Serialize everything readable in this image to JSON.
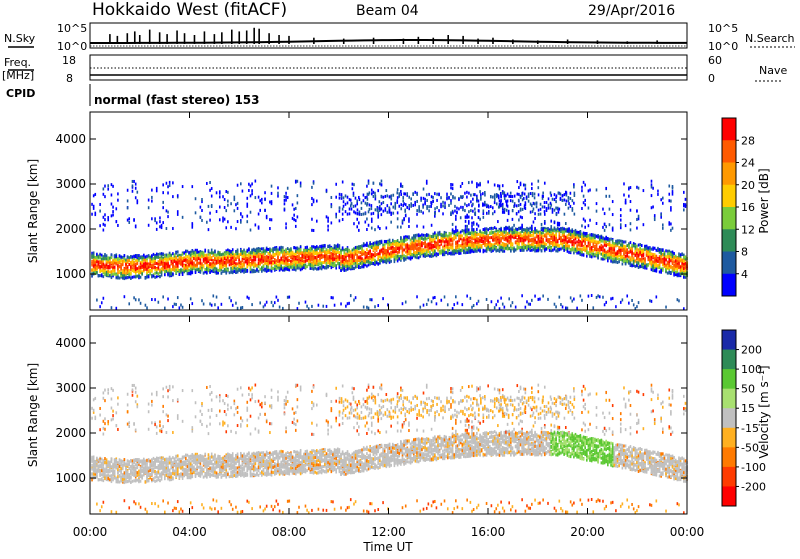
{
  "header": {
    "title": "Hokkaido West (fitACF)",
    "beam": "Beam 04",
    "date": "29/Apr/2016",
    "nsky_label": "N.Sky",
    "nsearch_label": "N.Search",
    "freq_label_1": "Freq.",
    "freq_label_2": "[MHz]",
    "nave_label": "Nave",
    "cpid_label": "CPID",
    "cpid_text": "normal (fast stereo) 153"
  },
  "chart_data": [
    {
      "type": "bar",
      "name": "noise-panel",
      "left_ticks": [
        "10^5",
        "10^0"
      ],
      "right_ticks": [
        "10^5",
        "10^0"
      ],
      "sky_spike_hours": [
        0.8,
        1.1,
        1.5,
        1.8,
        2.0,
        2.4,
        2.8,
        3.1,
        3.5,
        3.8,
        4.2,
        4.6,
        5.0,
        5.3,
        5.7,
        6.0,
        6.3,
        6.6,
        6.8,
        7.2,
        7.6,
        8.0,
        9.0,
        10.2,
        11.4,
        12.6,
        13.2,
        13.8,
        14.4,
        15.0,
        15.6,
        16.2,
        17.0,
        18.0,
        19.2,
        20.4,
        21.6,
        22.8
      ],
      "sky_spike_levels": [
        0.55,
        0.45,
        0.6,
        0.7,
        0.5,
        0.8,
        0.65,
        0.55,
        0.75,
        0.6,
        0.5,
        0.7,
        0.55,
        0.65,
        0.8,
        0.7,
        0.75,
        0.9,
        0.85,
        0.6,
        0.5,
        0.45,
        0.35,
        0.3,
        0.35,
        0.3,
        0.4,
        0.35,
        0.5,
        0.45,
        0.3,
        0.35,
        0.25,
        0.2,
        0.25,
        0.2,
        0.15,
        0.2
      ]
    },
    {
      "type": "line",
      "name": "freq-nave-panel",
      "left_ticks": [
        "18",
        "8"
      ],
      "right_ticks": [
        "60",
        "0"
      ]
    },
    {
      "type": "heatmap",
      "name": "power",
      "ylabel": "Slant Range [km]",
      "yticks": [
        "4000",
        "3000",
        "2000",
        "1000"
      ],
      "ylim": [
        200,
        4600
      ],
      "xlim_hours": [
        0,
        24
      ],
      "colorbar_label": "Power [dB]",
      "colorbar_ticks": [
        "28",
        "24",
        "20",
        "16",
        "12",
        "8",
        "4"
      ],
      "colorbar_colors": [
        "#ff0000",
        "#ff5a00",
        "#ff9900",
        "#ffcc00",
        "#7acc3a",
        "#2e8b57",
        "#1e5aa0",
        "#0000ff"
      ]
    },
    {
      "type": "heatmap",
      "name": "velocity",
      "ylabel": "Slant Range [km]",
      "yticks": [
        "4000",
        "3000",
        "2000",
        "1000"
      ],
      "ylim": [
        200,
        4600
      ],
      "xlim_hours": [
        0,
        24
      ],
      "colorbar_label": "Velocity [m s⁻¹]",
      "colorbar_ticks": [
        "200",
        "100",
        "50",
        "15",
        "-15",
        "-50",
        "-100",
        "-200"
      ],
      "colorbar_colors": [
        "#1a2aa8",
        "#2e8b57",
        "#5ac832",
        "#a8e070",
        "#c0c0c0",
        "#ffb020",
        "#ff7a00",
        "#ff3b00",
        "#ff0000"
      ]
    }
  ],
  "xaxis": {
    "ticks": [
      "00:00",
      "04:00",
      "08:00",
      "12:00",
      "16:00",
      "20:00",
      "00:00"
    ],
    "label": "Time UT"
  }
}
